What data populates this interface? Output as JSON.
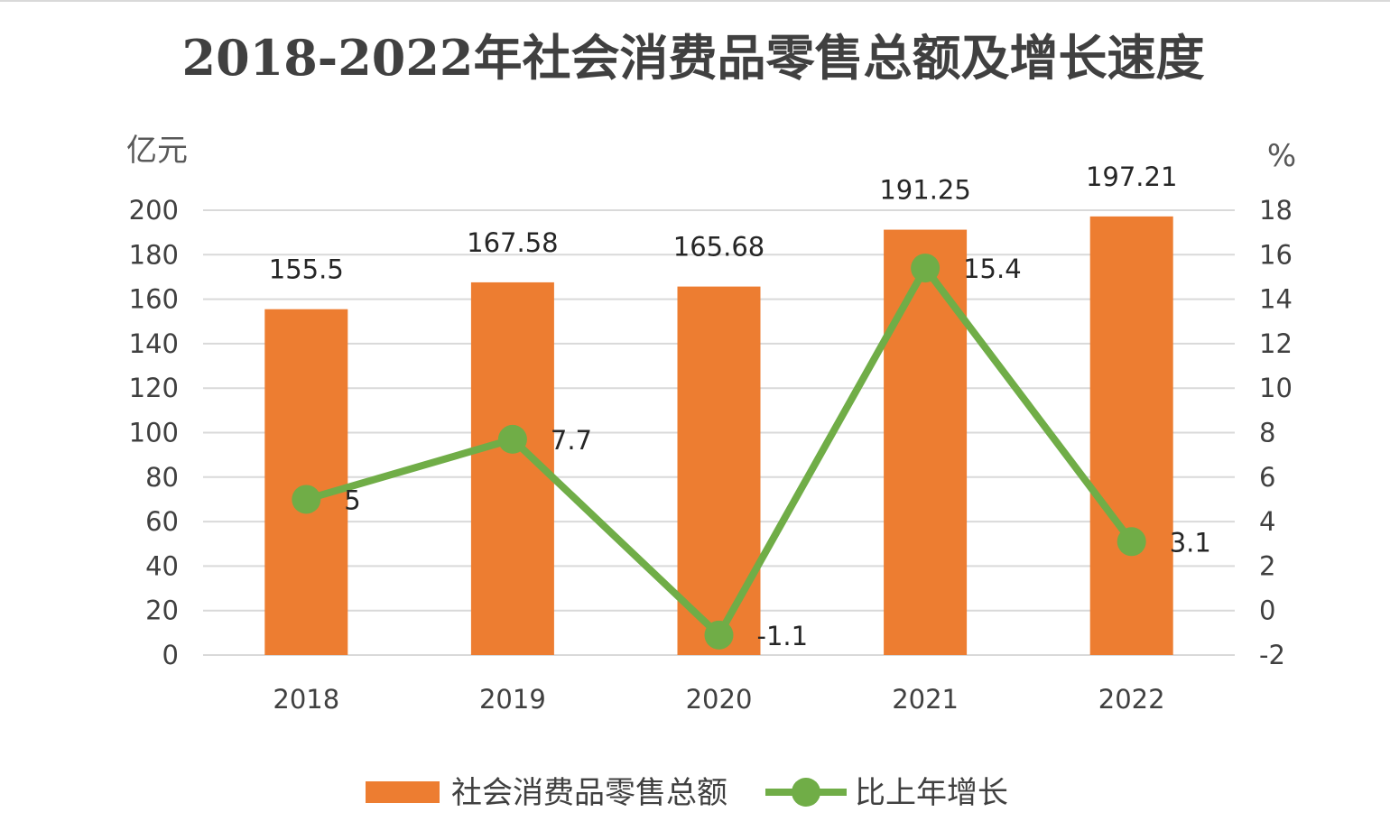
{
  "chart_data": {
    "type": "bar",
    "title": "2018-2022年社会消费品零售总额及增长速度",
    "y_left_unit": "亿元",
    "y_right_unit": "%",
    "categories": [
      "2018",
      "2019",
      "2020",
      "2021",
      "2022"
    ],
    "series": [
      {
        "name": "社会消费品零售总额",
        "type": "bar",
        "axis": "left",
        "values": [
          155.5,
          167.58,
          165.68,
          191.25,
          197.21
        ],
        "labels": [
          "155.5",
          "167.58",
          "165.68",
          "191.25",
          "197.21"
        ],
        "color": "#ed7d31"
      },
      {
        "name": "比上年增长",
        "type": "line",
        "axis": "right",
        "values": [
          5,
          7.7,
          -1.1,
          15.4,
          3.1
        ],
        "labels": [
          "5",
          "7.7",
          "-1.1",
          "15.4",
          "3.1"
        ],
        "color": "#70ad47"
      }
    ],
    "y_left": {
      "min": 0,
      "max": 200,
      "step": 20,
      "ticks": [
        "0",
        "20",
        "40",
        "60",
        "80",
        "100",
        "120",
        "140",
        "160",
        "180",
        "200"
      ]
    },
    "y_right": {
      "min": -2,
      "max": 18,
      "step": 2,
      "ticks": [
        "-2",
        "0",
        "2",
        "4",
        "6",
        "8",
        "10",
        "12",
        "14",
        "16",
        "18"
      ]
    },
    "grid": true,
    "gridline_color": "#d9d9d9",
    "legend_position": "bottom"
  }
}
